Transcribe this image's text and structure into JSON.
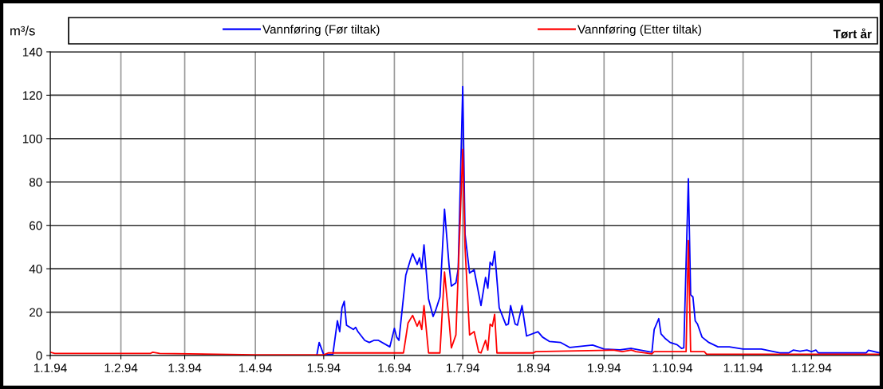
{
  "chart_data": {
    "type": "line",
    "title": "Tørt år",
    "ylabel": "m³/s",
    "xlim": [
      "1994-01-01",
      "1994-12-31"
    ],
    "xticks": [
      {
        "value": "1994-01-01",
        "label": "1.1.94"
      },
      {
        "value": "1994-02-01",
        "label": "1.2.94"
      },
      {
        "value": "1994-03-01",
        "label": "1.3.94"
      },
      {
        "value": "1994-04-01",
        "label": "1.4.94"
      },
      {
        "value": "1994-05-01",
        "label": "1.5.94"
      },
      {
        "value": "1994-06-01",
        "label": "1.6.94"
      },
      {
        "value": "1994-07-01",
        "label": "1.7.94"
      },
      {
        "value": "1994-08-01",
        "label": "1.8.94"
      },
      {
        "value": "1994-09-01",
        "label": "1.9.94"
      },
      {
        "value": "1994-10-01",
        "label": "1.10.94"
      },
      {
        "value": "1994-11-01",
        "label": "1.11.94"
      },
      {
        "value": "1994-12-01",
        "label": "1.12.94"
      }
    ],
    "ylim": [
      0,
      140
    ],
    "yticks": [
      0,
      20,
      40,
      60,
      80,
      100,
      120,
      140
    ],
    "grid": true,
    "legend": "top",
    "marker": "none",
    "line_style": "solid",
    "series": [
      {
        "name": "Vannføring (Før tiltak)",
        "color": "#0000ff",
        "x": [
          "1994-04-28",
          "1994-04-29",
          "1994-05-01",
          "1994-05-05",
          "1994-05-07",
          "1994-05-08",
          "1994-05-09",
          "1994-05-10",
          "1994-05-11",
          "1994-05-14",
          "1994-05-15",
          "1994-05-16",
          "1994-05-19",
          "1994-05-21",
          "1994-05-23",
          "1994-05-25",
          "1994-05-30",
          "1994-06-01",
          "1994-06-02",
          "1994-06-03",
          "1994-06-06",
          "1994-06-08",
          "1994-06-09",
          "1994-06-11",
          "1994-06-12",
          "1994-06-13",
          "1994-06-14",
          "1994-06-16",
          "1994-06-18",
          "1994-06-19",
          "1994-06-21",
          "1994-06-23",
          "1994-06-25",
          "1994-06-26",
          "1994-06-28",
          "1994-06-29",
          "1994-07-01",
          "1994-07-02",
          "1994-07-04",
          "1994-07-06",
          "1994-07-07",
          "1994-07-09",
          "1994-07-11",
          "1994-07-12",
          "1994-07-13",
          "1994-07-14",
          "1994-07-15",
          "1994-07-17",
          "1994-07-20",
          "1994-07-21",
          "1994-07-22",
          "1994-07-24",
          "1994-07-25",
          "1994-07-27",
          "1994-07-29",
          "1994-08-03",
          "1994-08-05",
          "1994-08-08",
          "1994-08-13",
          "1994-08-17",
          "1994-08-27",
          "1994-09-01",
          "1994-09-08",
          "1994-09-13",
          "1994-09-22",
          "1994-09-23",
          "1994-09-25",
          "1994-09-26",
          "1994-09-28",
          "1994-09-30",
          "1994-10-03",
          "1994-10-05",
          "1994-10-06",
          "1994-10-08",
          "1994-10-09",
          "1994-10-10",
          "1994-10-11",
          "1994-10-12",
          "1994-10-14",
          "1994-10-17",
          "1994-10-21",
          "1994-10-26",
          "1994-11-01",
          "1994-11-09",
          "1994-11-17",
          "1994-11-21",
          "1994-11-23",
          "1994-11-26",
          "1994-11-29",
          "1994-12-01",
          "1994-12-03",
          "1994-12-04",
          "1994-12-25",
          "1994-12-26",
          "1994-12-31"
        ],
        "values": [
          0.3,
          6,
          0.3,
          0.5,
          16,
          11,
          22,
          25,
          14,
          12,
          13,
          11,
          7,
          6,
          7,
          7,
          4,
          12.5,
          8.5,
          7,
          37,
          44,
          47,
          42,
          45,
          40,
          51,
          26,
          18,
          20.5,
          27,
          67.5,
          41.5,
          32,
          33.5,
          40,
          124,
          56,
          38,
          39.5,
          34,
          23,
          36,
          31,
          43,
          41.5,
          48,
          22,
          14,
          14.5,
          23,
          14.5,
          14,
          23,
          9,
          11,
          8.5,
          6.5,
          6,
          3.7,
          4.8,
          3,
          2.6,
          3.3,
          1.5,
          12,
          17,
          10,
          7.7,
          6,
          5,
          3.3,
          3.5,
          81.5,
          28,
          27,
          16,
          14.5,
          8.5,
          6,
          4,
          4,
          3,
          3,
          1.2,
          1.2,
          2.5,
          2,
          2.5,
          1.8,
          2.5,
          1.2,
          1.2,
          2.4,
          1.2
        ]
      },
      {
        "name": "Vannføring (Etter tiltak)",
        "color": "#ff0000",
        "x": [
          "1994-01-01",
          "1994-01-03",
          "1994-02-14",
          "1994-02-15",
          "1994-02-18",
          "1994-04-01",
          "1994-05-01",
          "1994-05-03",
          "1994-06-05",
          "1994-06-07",
          "1994-06-09",
          "1994-06-11",
          "1994-06-12",
          "1994-06-13",
          "1994-06-14",
          "1994-06-16",
          "1994-06-21",
          "1994-06-23",
          "1994-06-25",
          "1994-06-26",
          "1994-06-28",
          "1994-07-01",
          "1994-07-02",
          "1994-07-04",
          "1994-07-06",
          "1994-07-08",
          "1994-07-09",
          "1994-07-11",
          "1994-07-12",
          "1994-07-13",
          "1994-07-14",
          "1994-07-15",
          "1994-07-16",
          "1994-08-01",
          "1994-08-02",
          "1994-09-05",
          "1994-09-09",
          "1994-09-13",
          "1994-09-15",
          "1994-09-22",
          "1994-09-23",
          "1994-10-07",
          "1994-10-08",
          "1994-10-09",
          "1994-10-15",
          "1994-10-16",
          "1994-12-31"
        ],
        "values": [
          1.5,
          1,
          1,
          1.5,
          1,
          0.3,
          0.3,
          1.2,
          1.2,
          15,
          18.5,
          13.5,
          16,
          12,
          23,
          1.2,
          1.2,
          38.5,
          16,
          3.5,
          9.5,
          95,
          50,
          9.5,
          11,
          1.5,
          1.2,
          7,
          2.5,
          14.5,
          13.5,
          19,
          1.2,
          1.2,
          1.8,
          2.5,
          1.8,
          2.5,
          1.8,
          0.8,
          1.8,
          1.8,
          53,
          1.8,
          1.8,
          0.6,
          0.6
        ]
      }
    ]
  }
}
